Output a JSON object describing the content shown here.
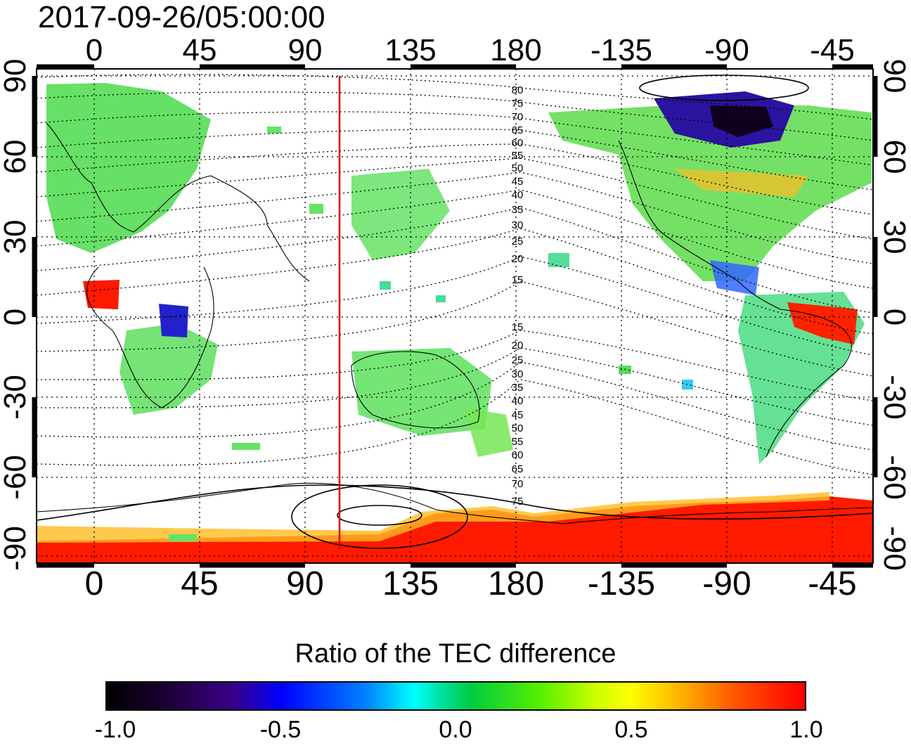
{
  "timestamp": "2017-09-26/05:00:00",
  "map": {
    "lon_ticks_top": [
      "0",
      "45",
      "90",
      "135",
      "180",
      "-135",
      "-90",
      "-45"
    ],
    "lon_ticks_bottom": [
      "0",
      "45",
      "90",
      "135",
      "180",
      "-135",
      "-90",
      "-45"
    ],
    "lat_ticks_left": [
      "90",
      "60",
      "30",
      "0",
      "-30",
      "-60",
      "-90"
    ],
    "lat_ticks_right": [
      "90",
      "60",
      "30",
      "0",
      "-30",
      "-60",
      "-90"
    ],
    "contour_labels_north": [
      "80",
      "75",
      "70",
      "65",
      "60",
      "55",
      "50",
      "45",
      "40",
      "35",
      "30",
      "25",
      "20",
      "15"
    ],
    "contour_labels_south": [
      "15",
      "20",
      "25",
      "30",
      "35",
      "40",
      "45",
      "50",
      "55",
      "60",
      "65",
      "70",
      "75"
    ],
    "grid": "dotted",
    "marker_line_color": "#dd0000"
  },
  "colorbar": {
    "title": "Ratio of the TEC difference",
    "ticks": [
      "-1.0",
      "-0.5",
      "0.0",
      "0.5",
      "1.0"
    ],
    "range": [
      -1.0,
      1.0
    ]
  },
  "colors": {
    "low": "#000000",
    "blue": "#0000ff",
    "cyan": "#00ffff",
    "green": "#00cc44",
    "yellow": "#ffff00",
    "high": "#ff0000"
  }
}
